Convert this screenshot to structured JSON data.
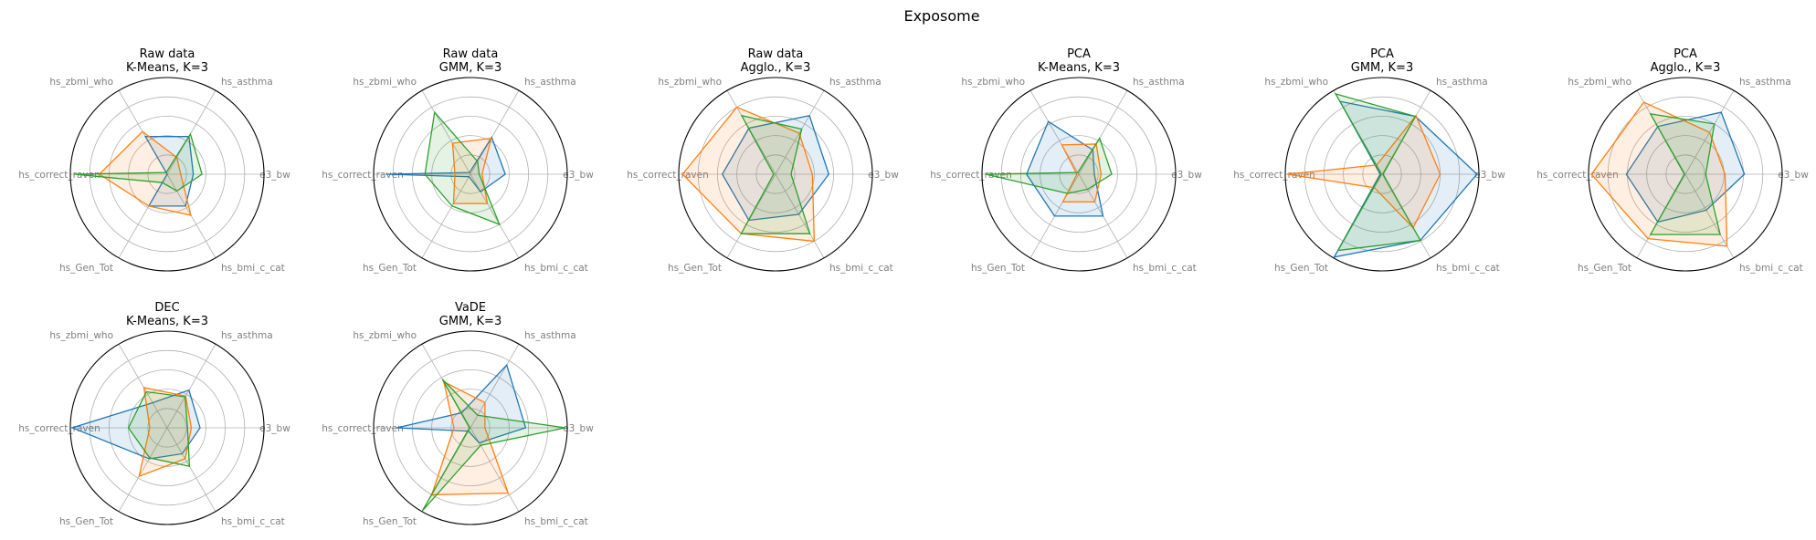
{
  "figure": {
    "title": "Exposome"
  },
  "colors": {
    "series": [
      "#1f77b4",
      "#ff7f0e",
      "#2ca02c"
    ],
    "grid": "#b0b0b0",
    "spoke": "#b0b0b0",
    "frame": "#000000",
    "axis_label": "#7f7f7f"
  },
  "chart_data": [
    {
      "type": "radar",
      "title_line1": "Raw data",
      "title_line2": "K-Means, K=3",
      "axes": [
        "e3_bw",
        "hs_asthma",
        "hs_zbmi_who",
        "hs_correct_raven",
        "hs_Gen_Tot",
        "hs_bmi_c_cat"
      ],
      "rlim": [
        0,
        1
      ],
      "grid": true,
      "series": [
        {
          "values": [
            0.27,
            0.45,
            0.45,
            0.0,
            0.38,
            0.38
          ]
        },
        {
          "values": [
            0.14,
            0.2,
            0.51,
            0.7,
            0.38,
            0.49
          ]
        },
        {
          "values": [
            0.36,
            0.48,
            0.02,
            0.96,
            0.1,
            0.2
          ]
        }
      ]
    },
    {
      "type": "radar",
      "title_line1": "Raw data",
      "title_line2": "GMM, K=3",
      "axes": [
        "e3_bw",
        "hs_asthma",
        "hs_zbmi_who",
        "hs_correct_raven",
        "hs_Gen_Tot",
        "hs_bmi_c_cat"
      ],
      "rlim": [
        0,
        1
      ],
      "grid": true,
      "series": [
        {
          "values": [
            0.36,
            0.44,
            0.02,
            0.87,
            0.03,
            0.21
          ]
        },
        {
          "values": [
            0.12,
            0.43,
            0.37,
            0.16,
            0.35,
            0.35
          ]
        },
        {
          "values": [
            0.09,
            0.15,
            0.74,
            0.47,
            0.38,
            0.6
          ]
        }
      ]
    },
    {
      "type": "radar",
      "title_line1": "Raw data",
      "title_line2": "Agglo., K=3",
      "axes": [
        "e3_bw",
        "hs_asthma",
        "hs_zbmi_who",
        "hs_correct_raven",
        "hs_Gen_Tot",
        "hs_bmi_c_cat"
      ],
      "rlim": [
        0,
        1
      ],
      "grid": true,
      "series": [
        {
          "values": [
            0.55,
            0.7,
            0.55,
            0.55,
            0.55,
            0.48
          ]
        },
        {
          "values": [
            0.38,
            0.49,
            0.8,
            0.96,
            0.71,
            0.8
          ]
        },
        {
          "values": [
            0.16,
            0.54,
            0.7,
            0.02,
            0.71,
            0.71
          ]
        }
      ]
    },
    {
      "type": "radar",
      "title_line1": "PCA",
      "title_line2": "K-Means, K=3",
      "axes": [
        "e3_bw",
        "hs_asthma",
        "hs_zbmi_who",
        "hs_correct_raven",
        "hs_Gen_Tot",
        "hs_bmi_c_cat"
      ],
      "rlim": [
        0,
        1
      ],
      "grid": true,
      "series": [
        {
          "values": [
            0.16,
            0.29,
            0.63,
            0.54,
            0.5,
            0.5
          ]
        },
        {
          "values": [
            0.23,
            0.36,
            0.35,
            0.02,
            0.33,
            0.33
          ]
        },
        {
          "values": [
            0.34,
            0.43,
            0.02,
            0.96,
            0.23,
            0.18
          ]
        }
      ]
    },
    {
      "type": "radar",
      "title_line1": "PCA",
      "title_line2": "GMM, K=3",
      "axes": [
        "e3_bw",
        "hs_asthma",
        "hs_zbmi_who",
        "hs_correct_raven",
        "hs_Gen_Tot",
        "hs_bmi_c_cat"
      ],
      "rlim": [
        0,
        1
      ],
      "grid": true,
      "series": [
        {
          "values": [
            0.98,
            0.69,
            0.87,
            0.02,
            0.99,
            0.79
          ]
        },
        {
          "values": [
            0.6,
            0.7,
            0.11,
            0.98,
            0.16,
            0.64
          ]
        },
        {
          "values": [
            0.01,
            0.69,
            0.96,
            0.01,
            0.91,
            0.79
          ]
        }
      ]
    },
    {
      "type": "radar",
      "title_line1": "PCA",
      "title_line2": "Agglo., K=3",
      "axes": [
        "e3_bw",
        "hs_asthma",
        "hs_zbmi_who",
        "hs_correct_raven",
        "hs_Gen_Tot",
        "hs_bmi_c_cat"
      ],
      "rlim": [
        0,
        1
      ],
      "grid": true,
      "series": [
        {
          "values": [
            0.61,
            0.74,
            0.57,
            0.61,
            0.57,
            0.43
          ]
        },
        {
          "values": [
            0.41,
            0.5,
            0.86,
            0.97,
            0.77,
            0.86
          ]
        },
        {
          "values": [
            0.21,
            0.6,
            0.72,
            0.01,
            0.72,
            0.72
          ]
        }
      ]
    },
    {
      "type": "radar",
      "title_line1": "DEC",
      "title_line2": "K-Means, K=3",
      "axes": [
        "e3_bw",
        "hs_asthma",
        "hs_zbmi_who",
        "hs_correct_raven",
        "hs_Gen_Tot",
        "hs_bmi_c_cat"
      ],
      "rlim": [
        0,
        1
      ],
      "grid": true,
      "series": [
        {
          "values": [
            0.34,
            0.45,
            0.3,
            0.98,
            0.37,
            0.31
          ]
        },
        {
          "values": [
            0.25,
            0.38,
            0.48,
            0.18,
            0.58,
            0.37
          ]
        },
        {
          "values": [
            0.21,
            0.37,
            0.43,
            0.4,
            0.36,
            0.46
          ]
        }
      ]
    },
    {
      "type": "radar",
      "title_line1": "VaDE",
      "title_line2": "GMM, K=3",
      "axes": [
        "e3_bw",
        "hs_asthma",
        "hs_zbmi_who",
        "hs_correct_raven",
        "hs_Gen_Tot",
        "hs_bmi_c_cat"
      ],
      "rlim": [
        0,
        1
      ],
      "grid": true,
      "series": [
        {
          "values": [
            0.57,
            0.75,
            0.18,
            0.76,
            0.04,
            0.18
          ]
        },
        {
          "values": [
            0.15,
            0.3,
            0.55,
            0.17,
            0.8,
            0.78
          ]
        },
        {
          "values": [
            0.98,
            0.15,
            0.58,
            0.01,
            0.99,
            0.21
          ]
        }
      ]
    }
  ]
}
